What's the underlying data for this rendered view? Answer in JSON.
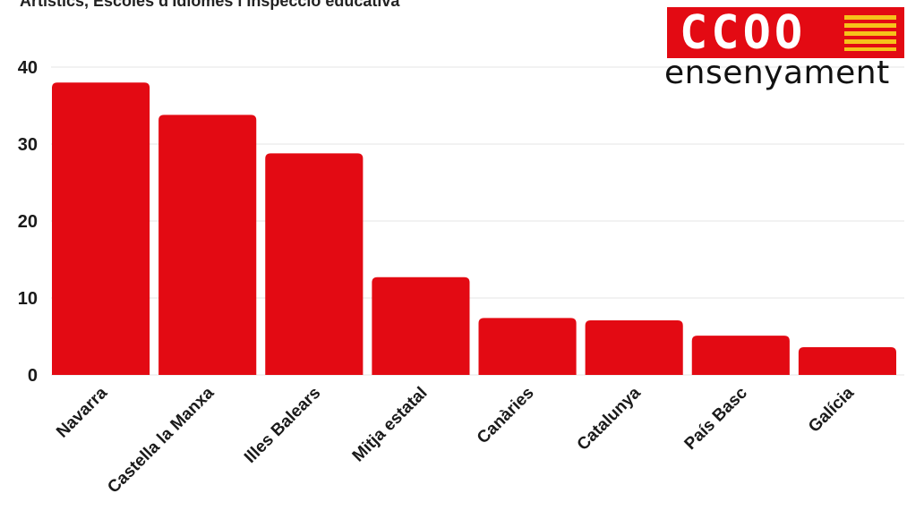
{
  "header": {
    "title": "Artístics, Escoles d'Idiomes i Inspecció educativa"
  },
  "logo": {
    "letters": "CCOO",
    "subtitle": "ensenyament",
    "accent": "#e30a13",
    "flag_stripe": "#f6c21a"
  },
  "chart_data": {
    "type": "bar",
    "categories": [
      "Navarra",
      "Castella la Manxa",
      "Illes Balears",
      "Mitja estatal",
      "Canàries",
      "Catalunya",
      "País Basc",
      "Galícia"
    ],
    "values": [
      38,
      33.8,
      28.8,
      12.7,
      7.4,
      7.1,
      5.1,
      3.6
    ],
    "ylim": [
      0,
      40
    ],
    "yticks": [
      0,
      10,
      20,
      30,
      40
    ],
    "bar_color": "#e30a13",
    "grid": true
  }
}
